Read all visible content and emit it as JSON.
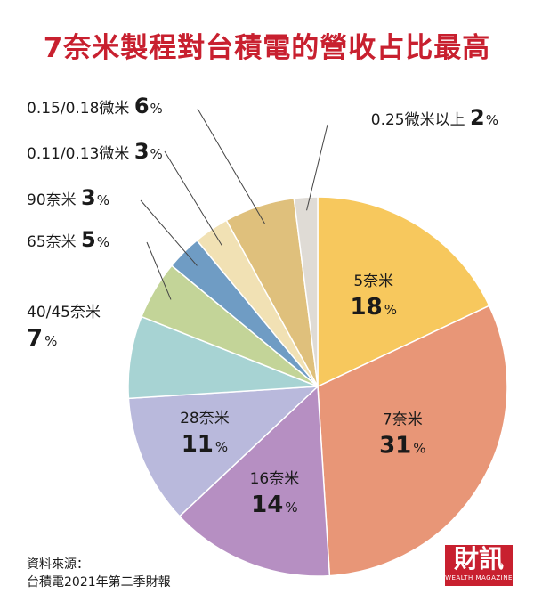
{
  "title": "7奈米製程對台積電的營收占比最高",
  "source_lines": [
    "資料來源：",
    "台積電2021年第二季財報"
  ],
  "logo": {
    "text": "財訊",
    "subtext": "WEALTH MAGAZINE",
    "color": "#c8202f"
  },
  "chart_data": {
    "type": "pie",
    "title": "7奈米製程對台積電的營收占比最高",
    "unit": "%",
    "slices": [
      {
        "label": "5奈米",
        "value": 18,
        "color": "#f7c85d"
      },
      {
        "label": "7奈米",
        "value": 31,
        "color": "#e89677"
      },
      {
        "label": "16奈米",
        "value": 14,
        "color": "#b68fc2"
      },
      {
        "label": "28奈米",
        "value": 11,
        "color": "#b9b9dc"
      },
      {
        "label": "40/45奈米",
        "value": 7,
        "color": "#a7d3d3"
      },
      {
        "label": "65奈米",
        "value": 5,
        "color": "#c3d498"
      },
      {
        "label": "90奈米",
        "value": 3,
        "color": "#6f9cc4"
      },
      {
        "label": "0.11/0.13微米",
        "value": 3,
        "color": "#f1e1b4"
      },
      {
        "label": "0.15/0.18微米",
        "value": 6,
        "color": "#dfc07c"
      },
      {
        "label": "0.25微米以上",
        "value": 2,
        "color": "#dfdbd5"
      }
    ]
  }
}
